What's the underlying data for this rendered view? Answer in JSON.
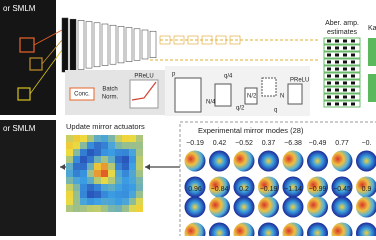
{
  "panels": {
    "top_label": "or SMLM",
    "bottom_label": "or SMLM"
  },
  "network": {
    "estimates_label_1": "Aber. amp.",
    "estimates_label_2": "estimates",
    "cropped_label": "Ka"
  },
  "inset_left": {
    "conc": "Conc.",
    "batch": "Batch",
    "norm": "Norm.",
    "prelu": "PReLU"
  },
  "inset_right": {
    "p": "p",
    "q4": "q/4",
    "n4": "N/4",
    "q2": "q/2",
    "n2": "N/2",
    "q": "q",
    "n": "N",
    "prelu": "PReLU"
  },
  "actuators": {
    "title": "Update mirror actuators"
  },
  "modes": {
    "title": "Experimental mirror modes (28)",
    "row1": [
      "−0.19",
      "0.42",
      "−0.52",
      "0.37",
      "−6.38",
      "−0.49",
      "0.77",
      "−0."
    ],
    "row2": [
      "0.96",
      "−0.84",
      "0.2",
      "−0.19",
      "−1.14",
      "−0.99",
      "−0.45",
      "0.9"
    ]
  }
}
